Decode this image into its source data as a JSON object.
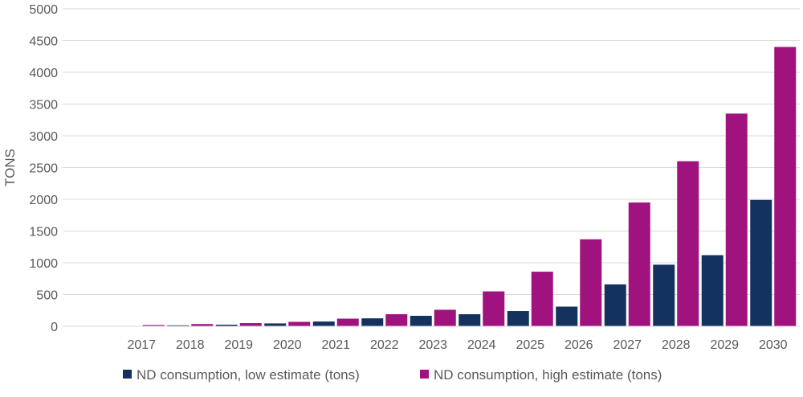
{
  "chart_data": {
    "type": "bar",
    "title": "",
    "xlabel": "",
    "ylabel": "TONS",
    "ylim": [
      0,
      5000
    ],
    "yticks": [
      0,
      500,
      1000,
      1500,
      2000,
      2500,
      3000,
      3500,
      4000,
      4500,
      5000
    ],
    "grid": true,
    "legend_position": "bottom",
    "categories": [
      "2017",
      "2018",
      "2019",
      "2020",
      "2021",
      "2022",
      "2023",
      "2024",
      "2025",
      "2026",
      "2027",
      "2028",
      "2029",
      "2030"
    ],
    "series": [
      {
        "name": "ND consumption, low estimate (tons)",
        "color": "#14325e",
        "values": [
          5,
          15,
          25,
          45,
          75,
          125,
          165,
          190,
          240,
          310,
          660,
          970,
          1120,
          1990
        ]
      },
      {
        "name": "ND consumption, high estimate (tons)",
        "color": "#a0127e",
        "values": [
          20,
          35,
          50,
          70,
          120,
          190,
          260,
          550,
          860,
          1370,
          1950,
          2600,
          3350,
          4400
        ]
      }
    ]
  }
}
